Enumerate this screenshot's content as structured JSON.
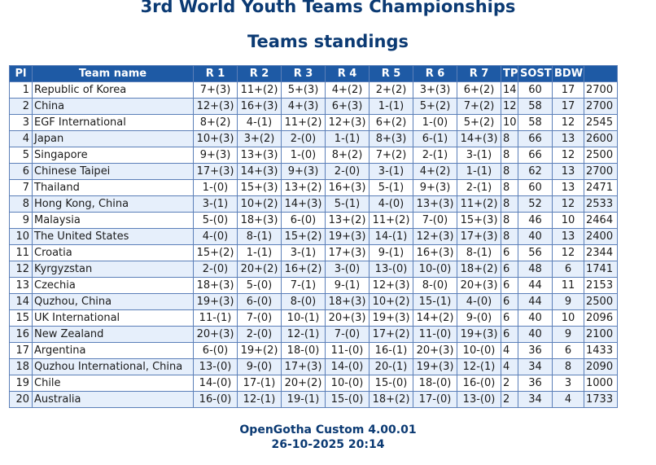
{
  "title": "3rd World Youth Teams Championships",
  "subtitle": "Teams standings",
  "headers": [
    "Pl",
    "Team name",
    "R 1",
    "R 2",
    "R 3",
    "R 4",
    "R 5",
    "R 6",
    "R 7",
    "TP",
    "SOST",
    "BDW",
    ""
  ],
  "rows": [
    {
      "pl": "1",
      "name": "Republic of Korea",
      "rounds": [
        "7+(3)",
        "11+(2)",
        "5+(3)",
        "4+(2)",
        "2+(2)",
        "3+(3)",
        "6+(2)"
      ],
      "tp": "14",
      "sost": "60",
      "bdw": "17",
      "rating": "2700"
    },
    {
      "pl": "2",
      "name": "China",
      "rounds": [
        "12+(3)",
        "16+(3)",
        "4+(3)",
        "6+(3)",
        "1-(1)",
        "5+(2)",
        "7+(2)"
      ],
      "tp": "12",
      "sost": "58",
      "bdw": "17",
      "rating": "2700"
    },
    {
      "pl": "3",
      "name": "EGF International",
      "rounds": [
        "8+(2)",
        "4-(1)",
        "11+(2)",
        "12+(3)",
        "6+(2)",
        "1-(0)",
        "5+(2)"
      ],
      "tp": "10",
      "sost": "58",
      "bdw": "12",
      "rating": "2545"
    },
    {
      "pl": "4",
      "name": "Japan",
      "rounds": [
        "10+(3)",
        "3+(2)",
        "2-(0)",
        "1-(1)",
        "8+(3)",
        "6-(1)",
        "14+(3)"
      ],
      "tp": "8",
      "sost": "66",
      "bdw": "13",
      "rating": "2600"
    },
    {
      "pl": "5",
      "name": "Singapore",
      "rounds": [
        "9+(3)",
        "13+(3)",
        "1-(0)",
        "8+(2)",
        "7+(2)",
        "2-(1)",
        "3-(1)"
      ],
      "tp": "8",
      "sost": "66",
      "bdw": "12",
      "rating": "2500"
    },
    {
      "pl": "6",
      "name": "Chinese Taipei",
      "rounds": [
        "17+(3)",
        "14+(3)",
        "9+(3)",
        "2-(0)",
        "3-(1)",
        "4+(2)",
        "1-(1)"
      ],
      "tp": "8",
      "sost": "62",
      "bdw": "13",
      "rating": "2700"
    },
    {
      "pl": "7",
      "name": "Thailand",
      "rounds": [
        "1-(0)",
        "15+(3)",
        "13+(2)",
        "16+(3)",
        "5-(1)",
        "9+(3)",
        "2-(1)"
      ],
      "tp": "8",
      "sost": "60",
      "bdw": "13",
      "rating": "2471"
    },
    {
      "pl": "8",
      "name": "Hong Kong, China",
      "rounds": [
        "3-(1)",
        "10+(2)",
        "14+(3)",
        "5-(1)",
        "4-(0)",
        "13+(3)",
        "11+(2)"
      ],
      "tp": "8",
      "sost": "52",
      "bdw": "12",
      "rating": "2533"
    },
    {
      "pl": "9",
      "name": "Malaysia",
      "rounds": [
        "5-(0)",
        "18+(3)",
        "6-(0)",
        "13+(2)",
        "11+(2)",
        "7-(0)",
        "15+(3)"
      ],
      "tp": "8",
      "sost": "46",
      "bdw": "10",
      "rating": "2464"
    },
    {
      "pl": "10",
      "name": "The United States",
      "rounds": [
        "4-(0)",
        "8-(1)",
        "15+(2)",
        "19+(3)",
        "14-(1)",
        "12+(3)",
        "17+(3)"
      ],
      "tp": "8",
      "sost": "40",
      "bdw": "13",
      "rating": "2400"
    },
    {
      "pl": "11",
      "name": "Croatia",
      "rounds": [
        "15+(2)",
        "1-(1)",
        "3-(1)",
        "17+(3)",
        "9-(1)",
        "16+(3)",
        "8-(1)"
      ],
      "tp": "6",
      "sost": "56",
      "bdw": "12",
      "rating": "2344"
    },
    {
      "pl": "12",
      "name": "Kyrgyzstan",
      "rounds": [
        "2-(0)",
        "20+(2)",
        "16+(2)",
        "3-(0)",
        "13-(0)",
        "10-(0)",
        "18+(2)"
      ],
      "tp": "6",
      "sost": "48",
      "bdw": "6",
      "rating": "1741"
    },
    {
      "pl": "13",
      "name": "Czechia",
      "rounds": [
        "18+(3)",
        "5-(0)",
        "7-(1)",
        "9-(1)",
        "12+(3)",
        "8-(0)",
        "20+(3)"
      ],
      "tp": "6",
      "sost": "44",
      "bdw": "11",
      "rating": "2153"
    },
    {
      "pl": "14",
      "name": "Quzhou, China",
      "rounds": [
        "19+(3)",
        "6-(0)",
        "8-(0)",
        "18+(3)",
        "10+(2)",
        "15-(1)",
        "4-(0)"
      ],
      "tp": "6",
      "sost": "44",
      "bdw": "9",
      "rating": "2500"
    },
    {
      "pl": "15",
      "name": "UK International",
      "rounds": [
        "11-(1)",
        "7-(0)",
        "10-(1)",
        "20+(3)",
        "19+(3)",
        "14+(2)",
        "9-(0)"
      ],
      "tp": "6",
      "sost": "40",
      "bdw": "10",
      "rating": "2096"
    },
    {
      "pl": "16",
      "name": "New Zealand",
      "rounds": [
        "20+(3)",
        "2-(0)",
        "12-(1)",
        "7-(0)",
        "17+(2)",
        "11-(0)",
        "19+(3)"
      ],
      "tp": "6",
      "sost": "40",
      "bdw": "9",
      "rating": "2100"
    },
    {
      "pl": "17",
      "name": "Argentina",
      "rounds": [
        "6-(0)",
        "19+(2)",
        "18-(0)",
        "11-(0)",
        "16-(1)",
        "20+(3)",
        "10-(0)"
      ],
      "tp": "4",
      "sost": "36",
      "bdw": "6",
      "rating": "1433"
    },
    {
      "pl": "18",
      "name": "Quzhou International, China",
      "rounds": [
        "13-(0)",
        "9-(0)",
        "17+(3)",
        "14-(0)",
        "20-(1)",
        "19+(3)",
        "12-(1)"
      ],
      "tp": "4",
      "sost": "34",
      "bdw": "8",
      "rating": "2090"
    },
    {
      "pl": "19",
      "name": "Chile",
      "rounds": [
        "14-(0)",
        "17-(1)",
        "20+(2)",
        "10-(0)",
        "15-(0)",
        "18-(0)",
        "16-(0)"
      ],
      "tp": "2",
      "sost": "36",
      "bdw": "3",
      "rating": "1000"
    },
    {
      "pl": "20",
      "name": "Australia",
      "rounds": [
        "16-(0)",
        "12-(1)",
        "19-(1)",
        "15-(0)",
        "18+(2)",
        "17-(0)",
        "13-(0)"
      ],
      "tp": "2",
      "sost": "34",
      "bdw": "4",
      "rating": "1733"
    }
  ],
  "footer": {
    "software": "OpenGotha Custom 4.00.01",
    "datetime": "26-10-2025 20:14"
  }
}
